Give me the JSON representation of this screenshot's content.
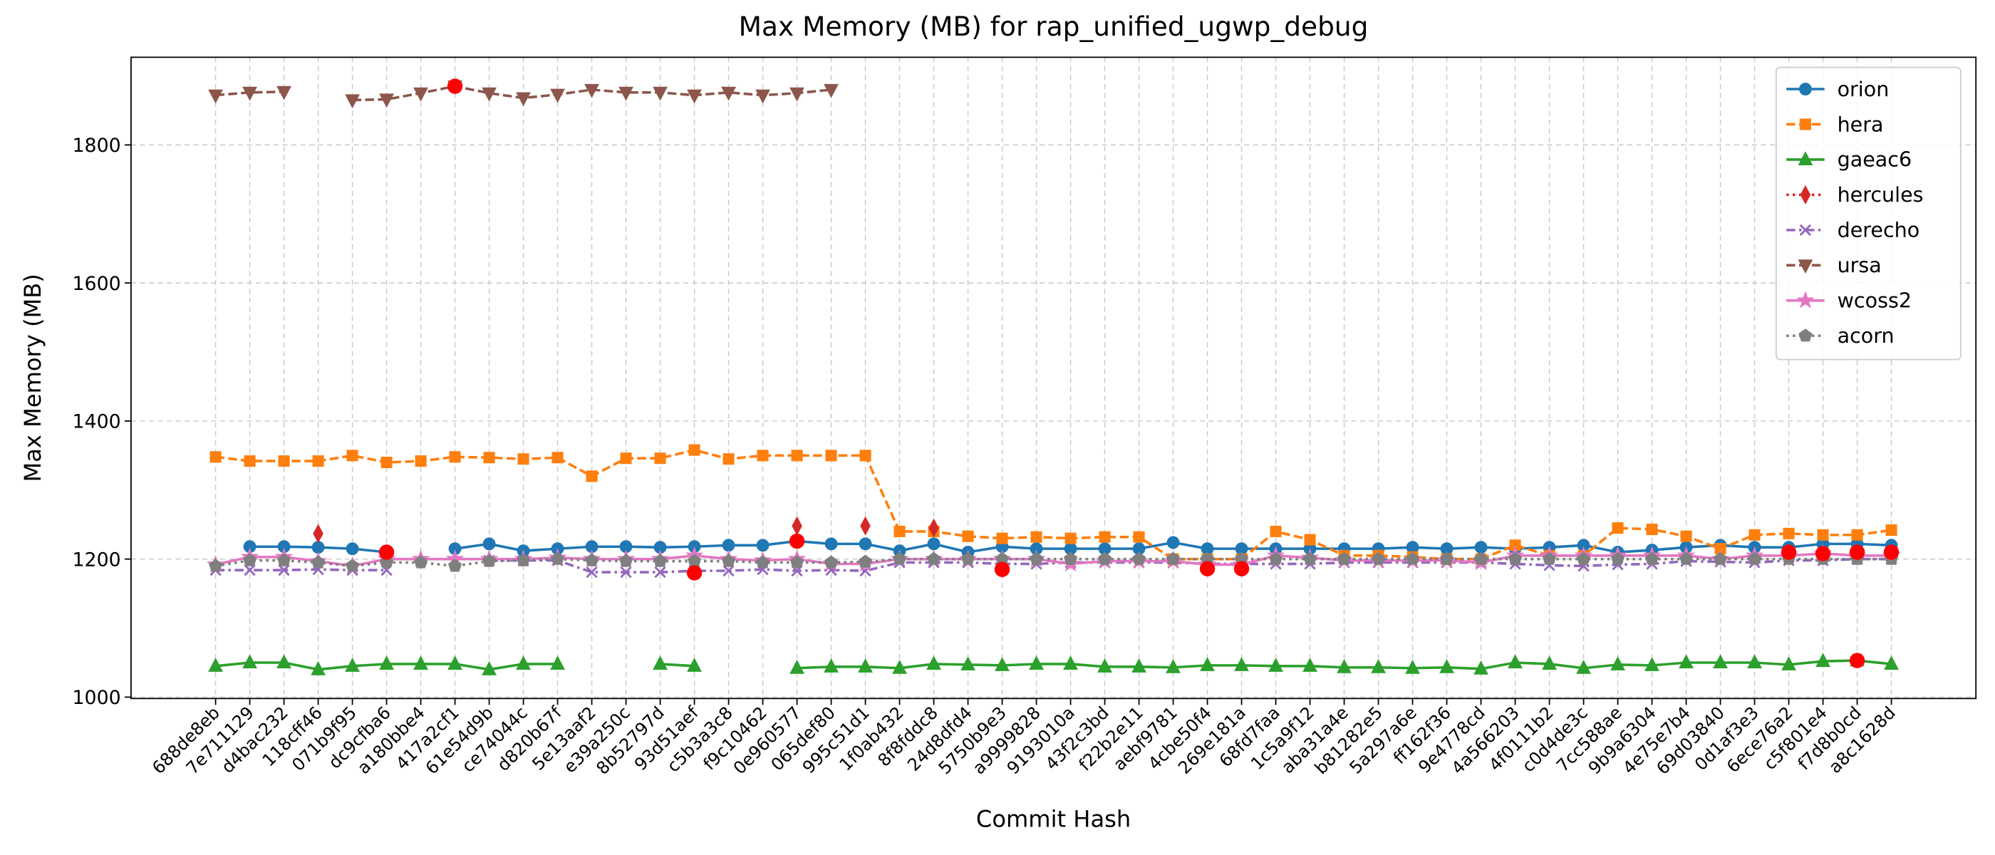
{
  "chart_data": {
    "type": "line",
    "title": "Max Memory (MB) for rap_unified_ugwp_debug",
    "x_label": "Commit Hash",
    "y_label": "Max Memory (MB)",
    "categories": [
      "688de8eb",
      "7e711129",
      "d4bac232",
      "118cff46",
      "071b9f95",
      "dc9cfba6",
      "a180bbe4",
      "417a2cf1",
      "61e54d9b",
      "ce74044c",
      "d820b67f",
      "5e13aaf2",
      "e39a250c",
      "8b52797d",
      "93d51aef",
      "c5b3a3c8",
      "f9c10462",
      "0e960577",
      "065def80",
      "995c51d1",
      "1f0ab432",
      "8f8fddc8",
      "24d8dfd4",
      "5750b9e3",
      "a9999828",
      "9193010a",
      "43f2c3bd",
      "f22b2e11",
      "aebf9781",
      "4cbe50f4",
      "269e181a",
      "68fd7faa",
      "1c5a9f12",
      "aba31a4e",
      "b81282e5",
      "5a297a6e",
      "ff162f36",
      "9e4778cd",
      "4a566203",
      "4f0111b2",
      "c0d4de3c",
      "7cc588ae",
      "9b9a6304",
      "4e75e7b4",
      "69d03840",
      "0d1af3e3",
      "6ece76a2",
      "c5f801e4",
      "f7d8b0cd",
      "a8c1628d"
    ],
    "series": [
      {
        "name": "orion",
        "color": "#1f77b4",
        "marker": "o",
        "linestyle": "solid",
        "values": [
          null,
          1218,
          1218,
          1217,
          1215,
          1210,
          null,
          1215,
          1222,
          1212,
          1215,
          1218,
          1218,
          1217,
          1218,
          1220,
          1220,
          1226,
          1222,
          1222,
          1212,
          1222,
          1210,
          1218,
          1215,
          1215,
          1215,
          1215,
          1224,
          1215,
          1215,
          1215,
          1215,
          1215,
          1215,
          1217,
          1215,
          1217,
          1215,
          1217,
          1220,
          1210,
          1213,
          1217,
          1220,
          1217,
          1217,
          1222,
          1222,
          1220
        ]
      },
      {
        "name": "hera",
        "color": "#ff7f0e",
        "marker": "s",
        "linestyle": "dashed",
        "values": [
          1348,
          1342,
          1342,
          1342,
          1350,
          1340,
          1342,
          1348,
          1347,
          1345,
          1347,
          1320,
          1346,
          1346,
          1358,
          1345,
          1350,
          1350,
          1350,
          1350,
          1240,
          1240,
          1233,
          1230,
          1232,
          1230,
          1232,
          1232,
          1200,
          1200,
          1200,
          1240,
          1228,
          1205,
          1205,
          1203,
          1200,
          1200,
          1220,
          1205,
          1205,
          1245,
          1243,
          1233,
          1215,
          1235,
          1237,
          1235,
          1235,
          1242
        ]
      },
      {
        "name": "gaeac6",
        "color": "#2ca02c",
        "marker": "^",
        "linestyle": "solid",
        "values": [
          1045,
          1050,
          1050,
          1040,
          1045,
          1048,
          1048,
          1048,
          1040,
          1048,
          1048,
          null,
          null,
          1048,
          1045,
          null,
          null,
          1042,
          1044,
          1044,
          1042,
          1048,
          1047,
          1046,
          1048,
          1048,
          1044,
          1044,
          1043,
          1046,
          1046,
          1045,
          1045,
          1043,
          1043,
          1042,
          1043,
          1041,
          1050,
          1048,
          1042,
          1047,
          1046,
          1050,
          1050,
          1050,
          1047,
          1052,
          1053,
          1048
        ]
      },
      {
        "name": "hercules",
        "color": "#d62728",
        "marker": "d",
        "linestyle": "dotted",
        "values": [
          null,
          null,
          null,
          1237,
          null,
          null,
          null,
          null,
          null,
          null,
          null,
          null,
          null,
          null,
          null,
          null,
          null,
          1248,
          null,
          1248,
          null,
          1245,
          null,
          null,
          null,
          null,
          null,
          null,
          null,
          null,
          null,
          null,
          null,
          null,
          null,
          null,
          null,
          null,
          null,
          null,
          null,
          null,
          null,
          null,
          null,
          null,
          null,
          null,
          null,
          null
        ]
      },
      {
        "name": "derecho",
        "color": "#9467bd",
        "marker": "x",
        "linestyle": "dashdot",
        "values": [
          1184,
          1184,
          1184,
          1185,
          1184,
          1184,
          null,
          null,
          1198,
          1198,
          1198,
          1181,
          1181,
          1181,
          1183,
          1183,
          1185,
          1183,
          1184,
          1183,
          1195,
          1195,
          1195,
          1193,
          1193,
          1195,
          1195,
          1195,
          1195,
          1193,
          1193,
          1193,
          1193,
          1195,
          1195,
          1195,
          1195,
          1195,
          1193,
          1191,
          1190,
          1192,
          1193,
          1197,
          1196,
          1195,
          1198,
          1198,
          1200,
          1200
        ]
      },
      {
        "name": "ursa",
        "color": "#8c564b",
        "marker": "v",
        "linestyle": "dashed",
        "values": [
          1872,
          1876,
          1877,
          null,
          1865,
          1866,
          1875,
          1885,
          1875,
          1868,
          1873,
          1880,
          1876,
          1876,
          1872,
          1876,
          1872,
          1875,
          1880,
          null,
          null,
          null,
          null,
          null,
          null,
          null,
          null,
          null,
          null,
          null,
          null,
          null,
          null,
          null,
          null,
          null,
          null,
          null,
          null,
          null,
          null,
          null,
          null,
          null,
          null,
          null,
          null,
          null,
          null,
          null
        ]
      },
      {
        "name": "wcoss2",
        "color": "#e377c2",
        "marker": "*",
        "linestyle": "solid",
        "values": [
          1192,
          1203,
          1203,
          1197,
          1190,
          1200,
          1200,
          1200,
          1200,
          1200,
          1202,
          1200,
          1200,
          1200,
          1205,
          1200,
          1198,
          1200,
          1193,
          1193,
          1200,
          1200,
          1200,
          1200,
          1200,
          1193,
          1197,
          1197,
          1197,
          1192,
          1192,
          1205,
          1202,
          1198,
          1198,
          1198,
          1198,
          1195,
          1205,
          1205,
          1205,
          1205,
          1205,
          1205,
          1200,
          1205,
          1205,
          1208,
          1205,
          1205
        ]
      },
      {
        "name": "acorn",
        "color": "#7f7f7f",
        "marker": "p",
        "linestyle": "dotted",
        "values": [
          1190,
          1198,
          1198,
          1195,
          1190,
          1195,
          1195,
          1190,
          1197,
          1198,
          1200,
          1198,
          1197,
          1197,
          1197,
          1197,
          1195,
          1195,
          1195,
          1196,
          1200,
          1200,
          1200,
          1200,
          1200,
          1200,
          1200,
          1200,
          1200,
          1200,
          1200,
          1200,
          1200,
          1200,
          1200,
          1200,
          1200,
          1200,
          1200,
          1200,
          1200,
          1200,
          1200,
          1200,
          1200,
          1200,
          1200,
          1200,
          1200,
          1200
        ]
      }
    ],
    "highlights": {
      "color": "#ff0000",
      "points": [
        {
          "x": "dc9cfba6",
          "value": 1210
        },
        {
          "x": "417a2cf1",
          "value": 1885
        },
        {
          "x": "93d51aef",
          "value": 1180
        },
        {
          "x": "0e960577",
          "value": 1226
        },
        {
          "x": "5750b9e3",
          "value": 1185
        },
        {
          "x": "4cbe50f4",
          "value": 1186
        },
        {
          "x": "269e181a",
          "value": 1186
        },
        {
          "x": "6ece76a2",
          "value": 1210
        },
        {
          "x": "c5f801e4",
          "value": 1208
        },
        {
          "x": "f7d8b0cd",
          "value": 1210
        },
        {
          "x": "a8c1628d",
          "value": 1210
        },
        {
          "x": "f7d8b0cd",
          "value": 1053
        }
      ]
    },
    "ylim": [
      998,
      1927
    ],
    "yticks": [
      1000,
      1200,
      1400,
      1600,
      1800
    ],
    "grid": true,
    "legend": "upper right"
  }
}
